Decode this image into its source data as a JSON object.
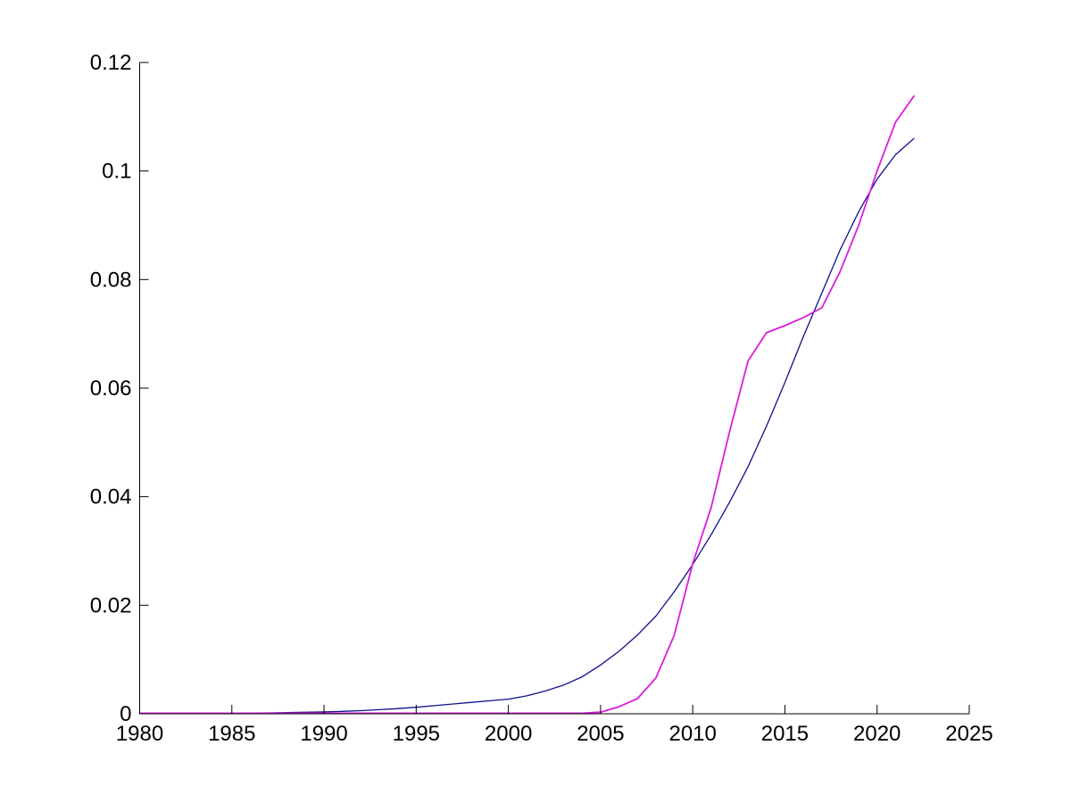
{
  "figure": {
    "background_color": "#ffffff",
    "title": ""
  },
  "chart_data": {
    "type": "line",
    "title": "",
    "xlabel": "",
    "ylabel": "",
    "grid": false,
    "legend": null,
    "box": false,
    "axis_color": "#000000",
    "tick_direction": "in",
    "xlim": [
      1980,
      2025
    ],
    "ylim": [
      0,
      0.12
    ],
    "x_ticks": [
      1980,
      1985,
      1990,
      1995,
      2000,
      2005,
      2010,
      2015,
      2020,
      2025
    ],
    "x_tick_labels": [
      "1980",
      "1985",
      "1990",
      "1995",
      "2000",
      "2005",
      "2010",
      "2015",
      "2020",
      "2025"
    ],
    "y_ticks": [
      0,
      0.02,
      0.04,
      0.06,
      0.08,
      0.1,
      0.12
    ],
    "y_tick_labels": [
      "0",
      "0.02",
      "0.04",
      "0.06",
      "0.08",
      "0.1",
      "0.12"
    ],
    "x": [
      1980,
      1981,
      1982,
      1983,
      1984,
      1985,
      1986,
      1987,
      1988,
      1989,
      1990,
      1991,
      1992,
      1993,
      1994,
      1995,
      1996,
      1997,
      1998,
      1999,
      2000,
      2001,
      2002,
      2003,
      2004,
      2005,
      2006,
      2007,
      2008,
      2009,
      2010,
      2011,
      2012,
      2013,
      2014,
      2015,
      2016,
      2017,
      2018,
      2019,
      2020,
      2021,
      2022
    ],
    "series": [
      {
        "name": "dark-blue-smooth",
        "color": "#10108C",
        "line_width": 1.3,
        "values": [
          5e-05,
          6e-05,
          7e-05,
          8e-05,
          9e-05,
          0.0001,
          0.00013,
          0.00017,
          0.00022,
          0.00028,
          0.00035,
          0.00045,
          0.00058,
          0.00075,
          0.00095,
          0.0012,
          0.0015,
          0.0018,
          0.0021,
          0.0024,
          0.0027,
          0.0033,
          0.0042,
          0.0053,
          0.0068,
          0.009,
          0.0115,
          0.0145,
          0.018,
          0.0225,
          0.0275,
          0.033,
          0.039,
          0.0455,
          0.053,
          0.061,
          0.0695,
          0.0775,
          0.0855,
          0.0925,
          0.0985,
          0.103,
          0.106
        ]
      },
      {
        "name": "magenta-stepped",
        "color": "#DC1CDC",
        "line_width": 1.8,
        "values": [
          0.0001,
          0.0001,
          0.0001,
          0.0001,
          0.0001,
          0.0001,
          0.0001,
          0.0001,
          0.0001,
          0.0001,
          0.0001,
          0.0001,
          0.0001,
          0.0001,
          0.0001,
          0.0001,
          0.0001,
          0.0001,
          0.0001,
          0.0001,
          0.0001,
          0.0001,
          0.0001,
          0.0001,
          0.0001,
          0.0003,
          0.0013,
          0.0028,
          0.0066,
          0.0145,
          0.0277,
          0.038,
          0.052,
          0.065,
          0.0702,
          0.0715,
          0.073,
          0.0748,
          0.0815,
          0.09,
          0.1,
          0.109,
          0.1138
        ]
      }
    ]
  }
}
